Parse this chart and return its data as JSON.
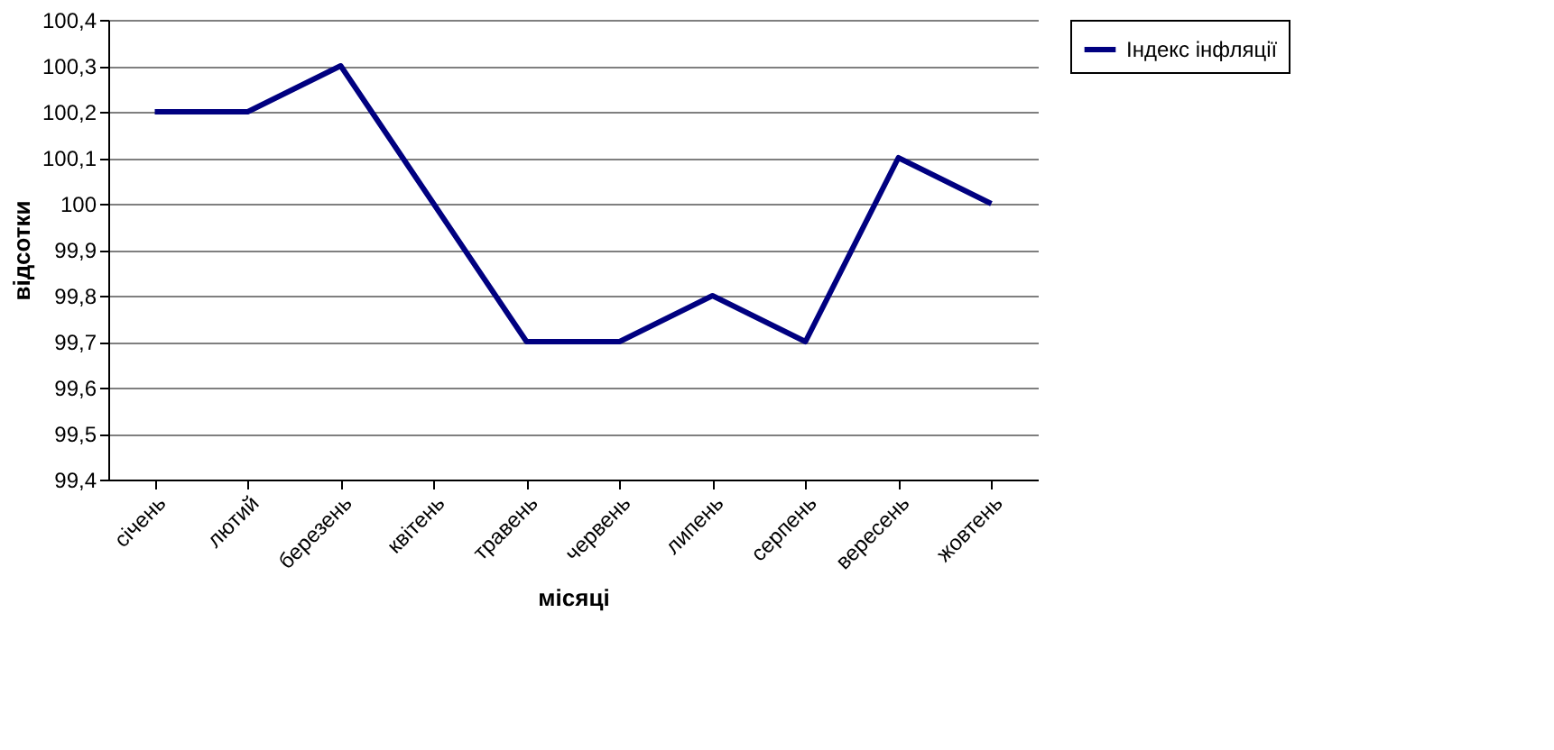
{
  "chart_data": {
    "type": "line",
    "xlabel": "місяці",
    "ylabel": "відсотки",
    "categories": [
      "січень",
      "лютий",
      "березень",
      "квітень",
      "травень",
      "червень",
      "липень",
      "серпень",
      "вересень",
      "жовтень"
    ],
    "series": [
      {
        "name": "Індекс інфляції",
        "color": "#000080",
        "values": [
          100.2,
          100.2,
          100.3,
          100.0,
          99.7,
          99.7,
          99.8,
          99.7,
          100.1,
          100.0
        ]
      }
    ],
    "ylim": [
      99.4,
      100.4
    ],
    "yticks": [
      {
        "value": 99.4,
        "label": "99,4"
      },
      {
        "value": 99.5,
        "label": "99,5"
      },
      {
        "value": 99.6,
        "label": "99,6"
      },
      {
        "value": 99.7,
        "label": "99,7"
      },
      {
        "value": 99.8,
        "label": "99,8"
      },
      {
        "value": 99.9,
        "label": "99,9"
      },
      100,
      {
        "value": 100.1,
        "label": "100,1"
      },
      {
        "value": 100.2,
        "label": "100,2"
      },
      {
        "value": 100.3,
        "label": "100,3"
      },
      {
        "value": 100.4,
        "label": "100,4"
      }
    ],
    "grid": "y",
    "legend": "right",
    "marker": "none",
    "line_style": "solid"
  }
}
